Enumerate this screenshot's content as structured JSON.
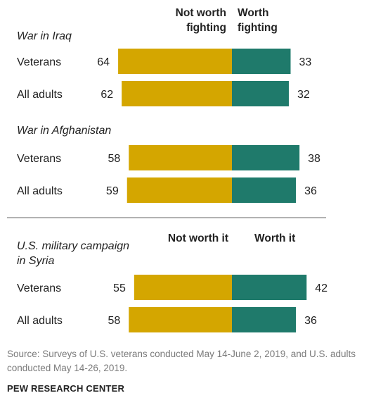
{
  "chart_data": {
    "type": "bar",
    "orientation": "horizontal",
    "stacked": "diverging",
    "colors": {
      "negative": "#d4a600",
      "positive": "#1f7a6b",
      "divider": "#999999"
    },
    "panels": [
      {
        "title": "War in Iraq",
        "headers": {
          "negative": "Not worth fighting",
          "positive": "Worth fighting"
        },
        "rows": [
          {
            "label": "Veterans",
            "negative": 64,
            "positive": 33
          },
          {
            "label": "All adults",
            "negative": 62,
            "positive": 32
          }
        ]
      },
      {
        "title": "War in Afghanistan",
        "rows": [
          {
            "label": "Veterans",
            "negative": 58,
            "positive": 38
          },
          {
            "label": "All adults",
            "negative": 59,
            "positive": 36
          }
        ]
      },
      {
        "title": "U.S. military campaign in Syria",
        "headers": {
          "negative": "Not worth it",
          "positive": "Worth it"
        },
        "rows": [
          {
            "label": "Veterans",
            "negative": 55,
            "positive": 42
          },
          {
            "label": "All adults",
            "negative": 58,
            "positive": 36
          }
        ]
      }
    ],
    "source": "Source: Surveys of U.S. veterans conducted May 14-June 2, 2019, and U.S. adults conducted May 14-26, 2019.",
    "credit": "PEW RESEARCH CENTER"
  }
}
